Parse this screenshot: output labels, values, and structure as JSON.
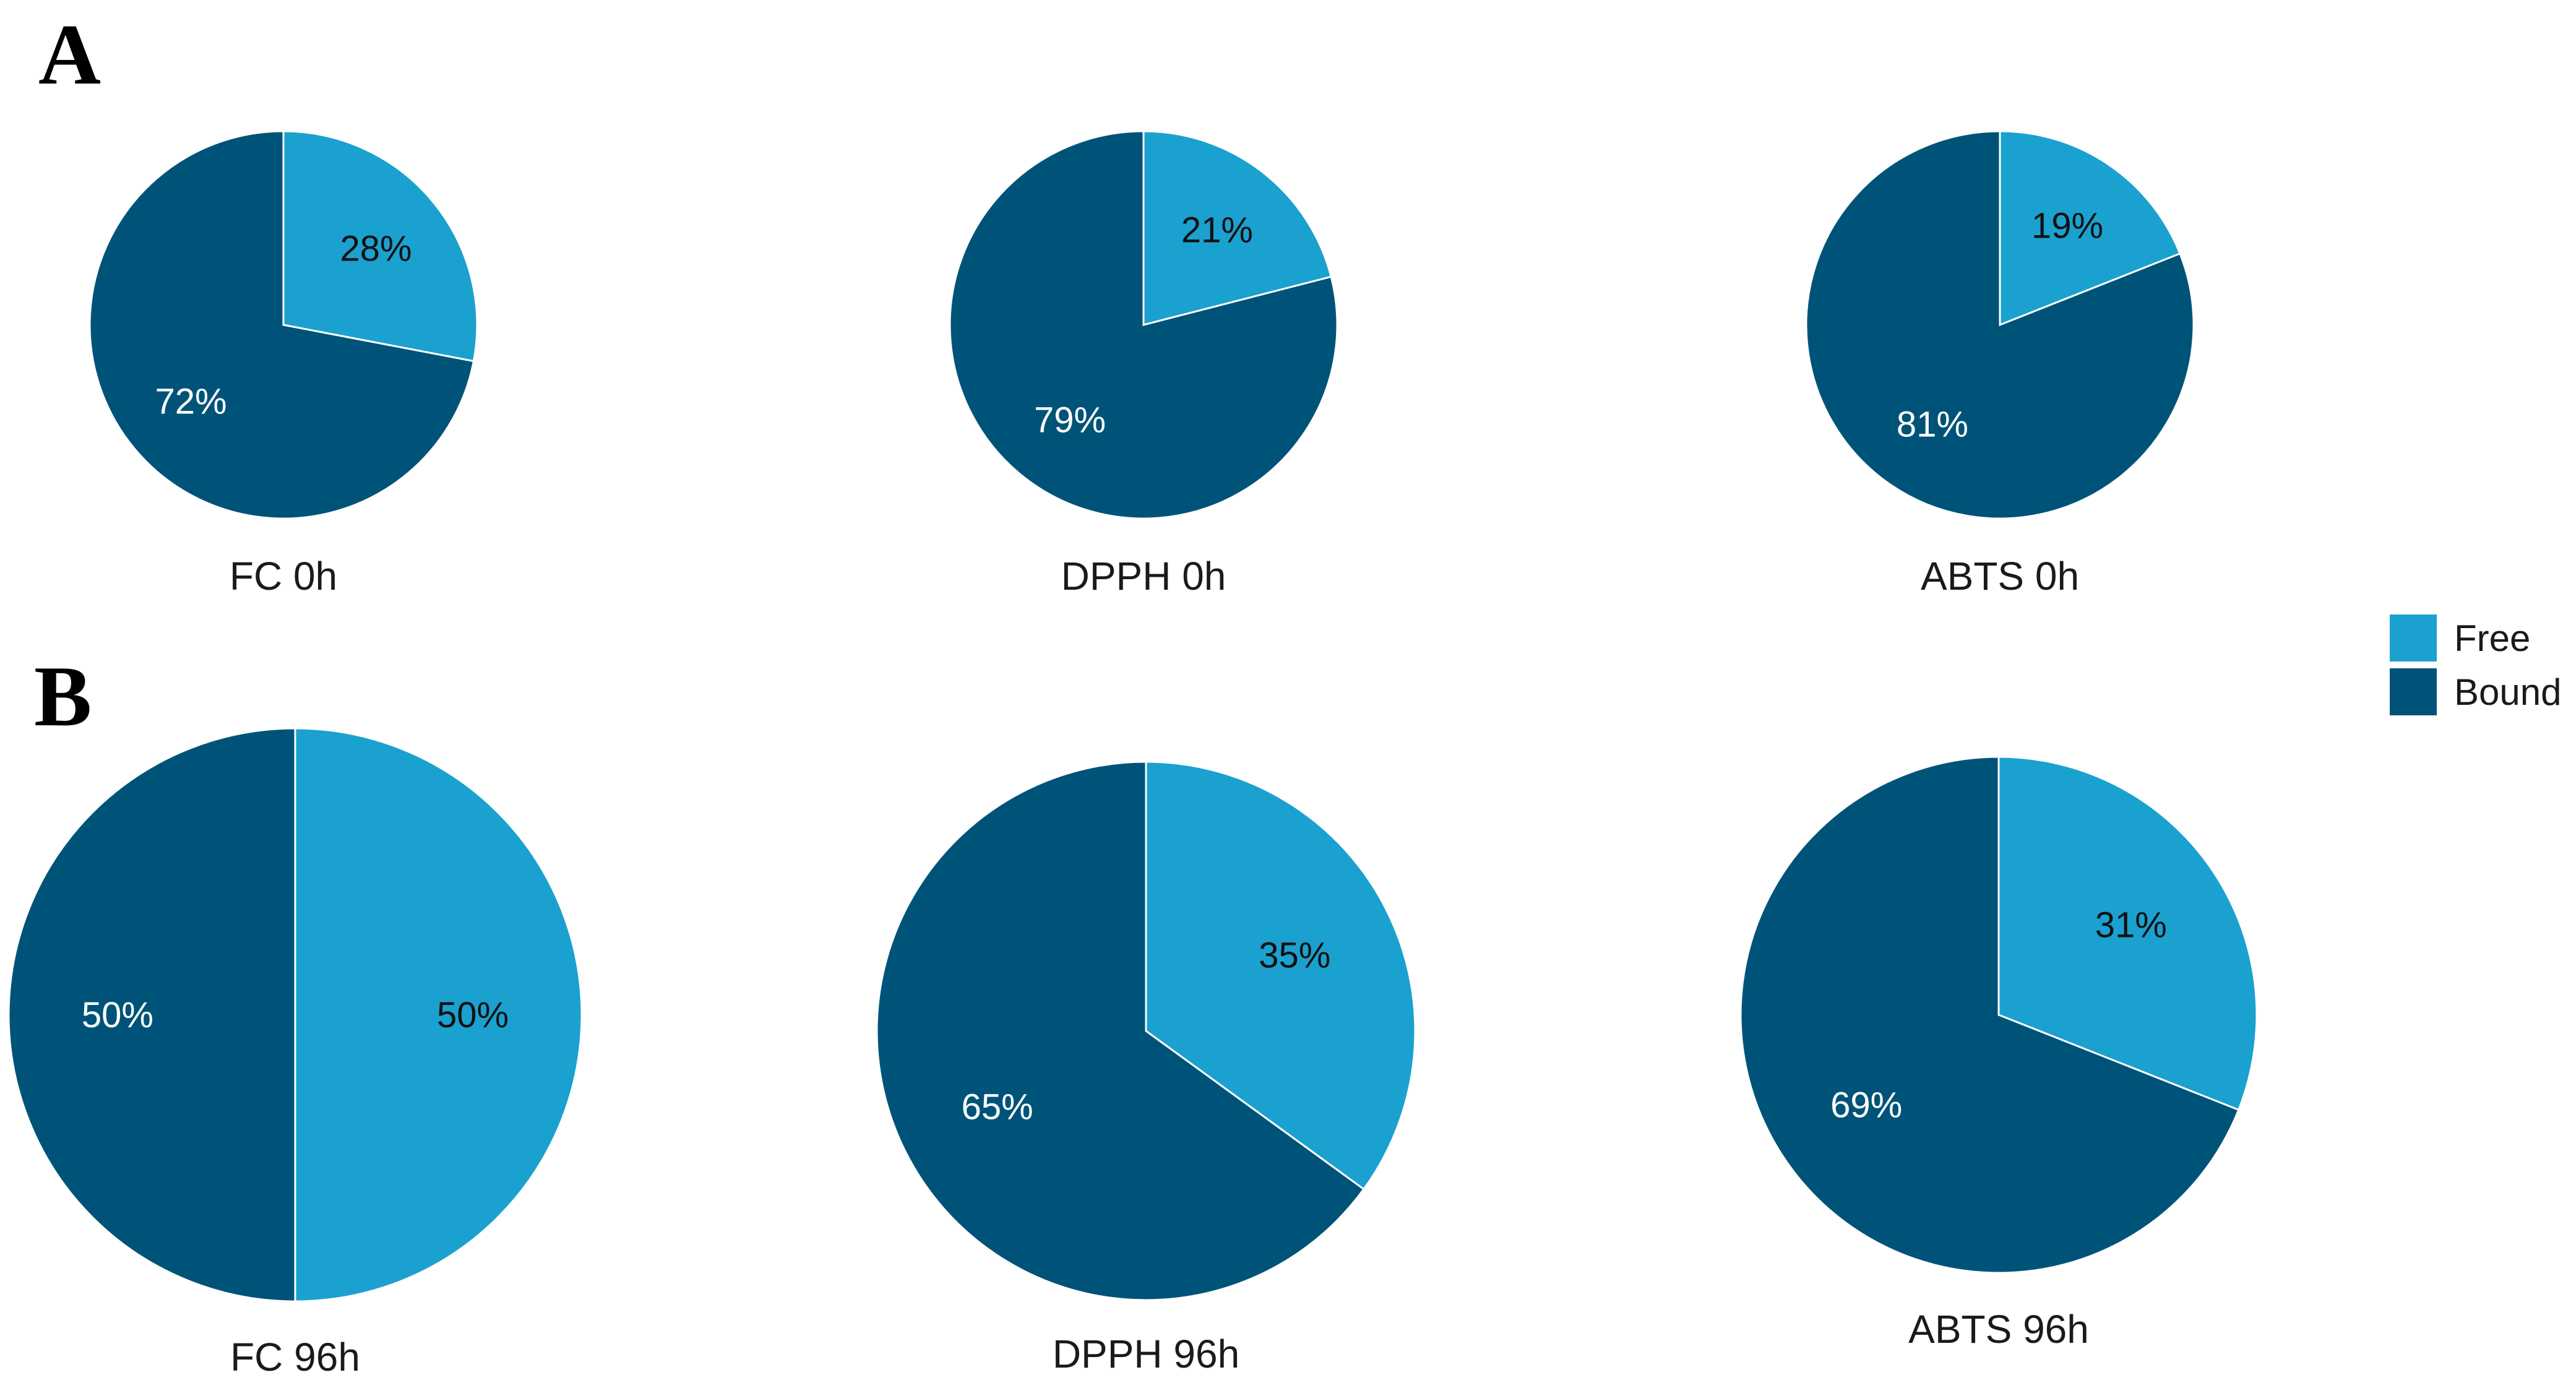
{
  "panels": {
    "a": "A",
    "b": "B"
  },
  "legend": {
    "free": "Free",
    "bound": "Bound"
  },
  "colors": {
    "free": "#1aa1cf",
    "bound": "#005378",
    "free_text": "#111111",
    "bound_text": "#ffffff",
    "divider": "#ffffff"
  },
  "chart_data": [
    {
      "type": "pie",
      "panel": "A",
      "title": "FC 0h",
      "categories": [
        "Free",
        "Bound"
      ],
      "values": [
        28,
        72
      ],
      "labels": [
        "28%",
        "72%"
      ]
    },
    {
      "type": "pie",
      "panel": "A",
      "title": "DPPH 0h",
      "categories": [
        "Free",
        "Bound"
      ],
      "values": [
        21,
        79
      ],
      "labels": [
        "21%",
        "79%"
      ]
    },
    {
      "type": "pie",
      "panel": "A",
      "title": "ABTS 0h",
      "categories": [
        "Free",
        "Bound"
      ],
      "values": [
        19,
        81
      ],
      "labels": [
        "19%",
        "81%"
      ]
    },
    {
      "type": "pie",
      "panel": "B",
      "title": "FC 96h",
      "categories": [
        "Free",
        "Bound"
      ],
      "values": [
        50,
        50
      ],
      "labels": [
        "50%",
        "50%"
      ]
    },
    {
      "type": "pie",
      "panel": "B",
      "title": "DPPH 96h",
      "categories": [
        "Free",
        "Bound"
      ],
      "values": [
        35,
        65
      ],
      "labels": [
        "35%",
        "65%"
      ]
    },
    {
      "type": "pie",
      "panel": "B",
      "title": "ABTS 96h",
      "categories": [
        "Free",
        "Bound"
      ],
      "values": [
        31,
        69
      ],
      "labels": [
        "31%",
        "69%"
      ]
    }
  ]
}
